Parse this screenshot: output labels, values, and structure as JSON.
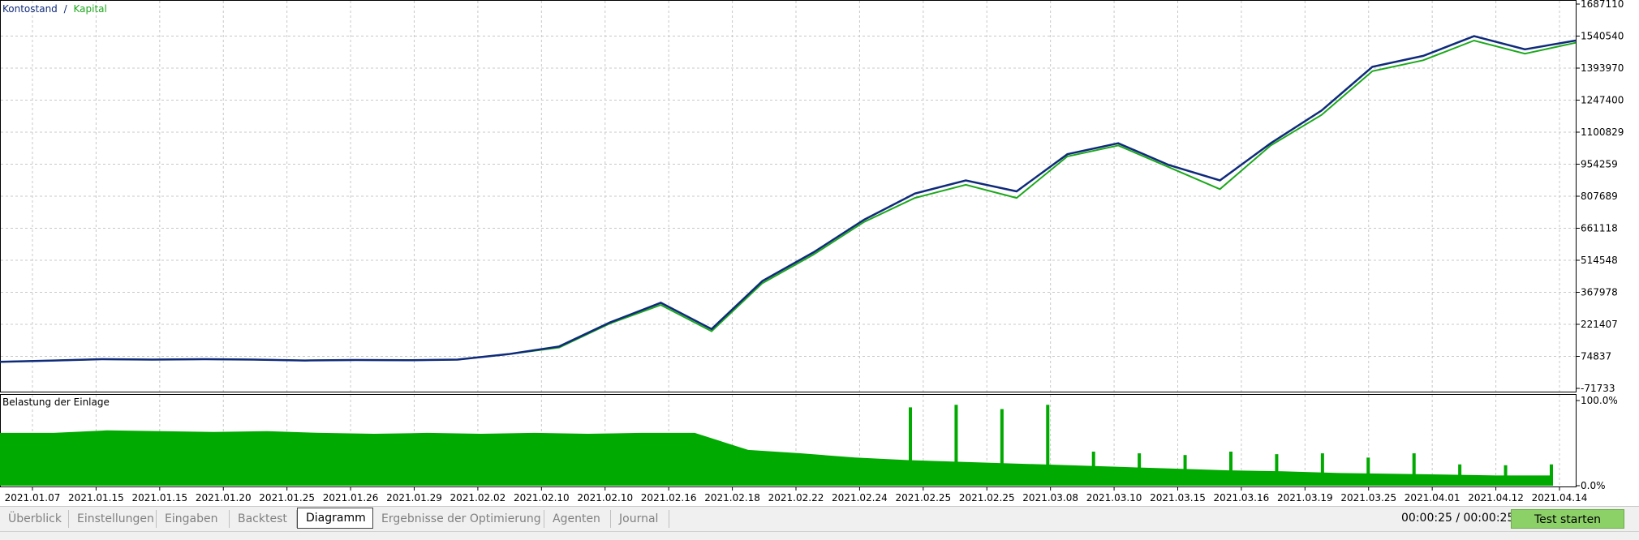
{
  "main_chart": {
    "legend": {
      "label_a": "Kontostand",
      "separator": "/",
      "label_b": "Kapital"
    },
    "y_ticks": [
      "1687110",
      "1540540",
      "1393970",
      "1247400",
      "1100829",
      "954259",
      "807689",
      "661118",
      "514548",
      "367978",
      "221407",
      "74837",
      "-71733"
    ],
    "colors": {
      "balance": "#0f2a7a",
      "equity": "#1ca81c"
    }
  },
  "sub_chart": {
    "title": "Belastung der Einlage",
    "y_ticks": [
      "100.0%",
      "0.0%"
    ],
    "color": "#00aa00"
  },
  "x_ticks": [
    "2021.01.07",
    "2021.01.15",
    "2021.01.15",
    "2021.01.20",
    "2021.01.25",
    "2021.01.26",
    "2021.01.29",
    "2021.02.02",
    "2021.02.10",
    "2021.02.10",
    "2021.02.16",
    "2021.02.18",
    "2021.02.22",
    "2021.02.24",
    "2021.02.25",
    "2021.02.25",
    "2021.03.08",
    "2021.03.10",
    "2021.03.15",
    "2021.03.16",
    "2021.03.19",
    "2021.03.25",
    "2021.04.01",
    "2021.04.12",
    "2021.04.14"
  ],
  "chart_data": [
    {
      "type": "line",
      "series": [
        {
          "name": "Kontostand",
          "values": [
            50000,
            55000,
            62000,
            60000,
            62000,
            60000,
            56000,
            58000,
            57000,
            60000,
            85000,
            120000,
            230000,
            320000,
            200000,
            420000,
            550000,
            700000,
            820000,
            880000,
            830000,
            1000000,
            1050000,
            950000,
            880000,
            1050000,
            1200000,
            1400000,
            1450000,
            1540000,
            1480000,
            1520000
          ]
        },
        {
          "name": "Kapital",
          "values": [
            50000,
            55000,
            62000,
            60000,
            62000,
            60000,
            56000,
            58000,
            57000,
            60000,
            85000,
            115000,
            225000,
            310000,
            190000,
            410000,
            540000,
            690000,
            800000,
            860000,
            800000,
            990000,
            1040000,
            940000,
            840000,
            1040000,
            1180000,
            1380000,
            1430000,
            1520000,
            1460000,
            1510000
          ]
        }
      ],
      "ylim": [
        -71733,
        1687110
      ]
    },
    {
      "type": "area",
      "title": "Belastung der Einlage",
      "series": [
        {
          "name": "",
          "values": [
            0.62,
            0.62,
            0.65,
            0.64,
            0.63,
            0.64,
            0.62,
            0.61,
            0.62,
            0.61,
            0.62,
            0.61,
            0.62,
            0.62,
            0.42,
            0.38,
            0.33,
            0.3,
            0.28,
            0.26,
            0.24,
            0.22,
            0.2,
            0.18,
            0.17,
            0.15,
            0.14,
            0.13,
            0.12,
            0.12
          ]
        }
      ],
      "spikes": [
        0.92,
        0.95,
        0.9,
        0.95,
        0.4,
        0.38,
        0.36,
        0.4,
        0.37,
        0.38,
        0.33,
        0.38,
        0.25,
        0.24,
        0.25
      ],
      "ylim": [
        0,
        1
      ]
    }
  ],
  "tabs": [
    "Überblick",
    "Einstellungen",
    "Eingaben",
    "Backtest",
    "Diagramm",
    "Ergebnisse der Optimierung",
    "Agenten",
    "Journal"
  ],
  "active_tab": "Diagramm",
  "timer": "00:00:25 / 00:00:25",
  "start_button": "Test starten"
}
